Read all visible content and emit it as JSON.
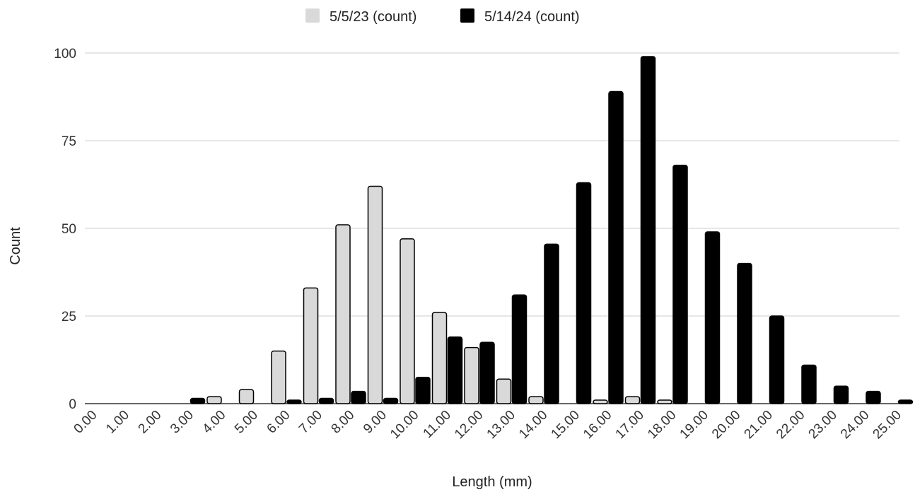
{
  "chart_data": {
    "type": "bar",
    "xlabel": "Length (mm)",
    "ylabel": "Count",
    "ylim": [
      0,
      100
    ],
    "yticks": [
      0,
      25,
      50,
      75,
      100
    ],
    "grid": true,
    "legend_position": "top-center",
    "categories": [
      "0.00",
      "1.00",
      "2.00",
      "3.00",
      "4.00",
      "5.00",
      "6.00",
      "7.00",
      "8.00",
      "9.00",
      "10.00",
      "11.00",
      "12.00",
      "13.00",
      "14.00",
      "15.00",
      "16.00",
      "17.00",
      "18.00",
      "19.00",
      "20.00",
      "21.00",
      "22.00",
      "23.00",
      "24.00",
      "25.00"
    ],
    "series": [
      {
        "name": "5/5/23 (count)",
        "color": "#d9d9d9",
        "values": [
          0,
          0,
          0,
          0,
          2,
          4,
          15,
          33,
          51,
          62,
          47,
          26,
          16,
          7,
          2,
          0,
          1,
          2,
          1,
          0,
          0,
          0,
          0,
          0,
          0,
          0
        ]
      },
      {
        "name": "5/14/24 (count)",
        "color": "#000000",
        "values": [
          0,
          0,
          0,
          1.5,
          0,
          0,
          1,
          1.5,
          3.5,
          1.5,
          7.5,
          19,
          17.5,
          31,
          45.5,
          63,
          89,
          99,
          68,
          49,
          40,
          25,
          11,
          5,
          3.5,
          1
        ]
      }
    ]
  }
}
